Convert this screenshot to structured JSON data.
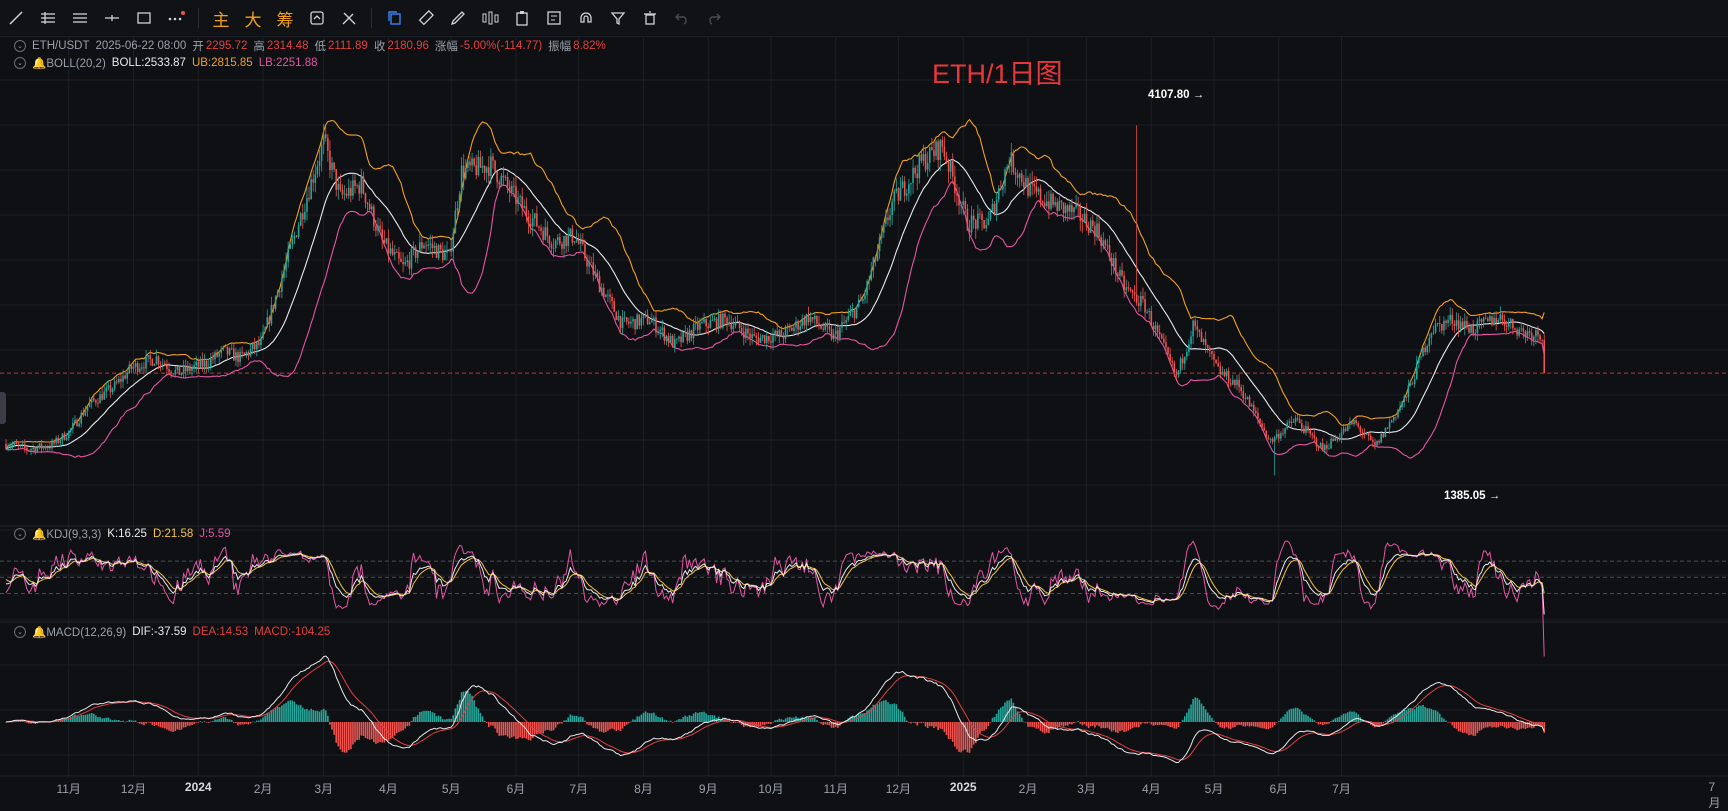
{
  "toolbar": {
    "tools": [
      "trend-line-icon",
      "horizontal-ray-icon",
      "parallel-channel-icon",
      "horizontal-line-icon",
      "rectangle-icon",
      "more-dots-icon"
    ],
    "text_buttons": [
      "主",
      "大",
      "筹"
    ],
    "right_tools": [
      "copy-icon",
      "ruler-icon",
      "brush-icon",
      "indicator-icon",
      "clipboard-icon",
      "note-icon",
      "magnet-icon",
      "filter-icon",
      "trash-icon",
      "undo-icon",
      "redo-icon"
    ]
  },
  "legend": {
    "symbol": "ETH/USDT",
    "datetime": "2025-06-22 08:00",
    "open_label": "开",
    "open": "2295.72",
    "high_label": "高",
    "high": "2314.48",
    "low_label": "低",
    "low": "2111.89",
    "close_label": "收",
    "close": "2180.96",
    "change_label": "涨幅",
    "change": "-5.00%(-114.77)",
    "amp_label": "振幅",
    "amp": "8.82%",
    "boll_name": "BOLL(20,2)",
    "boll": "BOLL:2533.87",
    "ub": "UB:2815.85",
    "lb": "LB:2251.88",
    "kdj_name": "KDJ(9,3,3)",
    "k": "K:16.25",
    "d": "D:21.58",
    "j": "J:5.59",
    "macd_name": "MACD(12,26,9)",
    "dif": "DIF:-37.59",
    "dea": "DEA:14.53",
    "macd": "MACD:-104.25"
  },
  "title": "ETH/1日图",
  "chart_data": {
    "type": "candlestick",
    "interval": "1d",
    "current_price": 2180.96,
    "markers": {
      "high": "4107.80",
      "low": "1385.05"
    },
    "x_labels": [
      "11月",
      "12月",
      "2024",
      "2月",
      "3月",
      "4月",
      "5月",
      "6月",
      "7月",
      "8月",
      "9月",
      "10月",
      "11月",
      "12月",
      "2025",
      "2月",
      "3月",
      "4月",
      "5月",
      "6月",
      "7月"
    ],
    "anchors": [
      [
        1,
        1630
      ],
      [
        10,
        1590
      ],
      [
        22,
        1620
      ],
      [
        30,
        1720
      ],
      [
        40,
        1940
      ],
      [
        52,
        2080
      ],
      [
        60,
        2220
      ],
      [
        72,
        2300
      ],
      [
        82,
        2180
      ],
      [
        96,
        2260
      ],
      [
        104,
        2350
      ],
      [
        112,
        2300
      ],
      [
        122,
        2410
      ],
      [
        130,
        2820
      ],
      [
        140,
        3350
      ],
      [
        152,
        3980
      ],
      [
        160,
        3550
      ],
      [
        170,
        3650
      ],
      [
        180,
        3200
      ],
      [
        190,
        3000
      ],
      [
        200,
        3200
      ],
      [
        212,
        3080
      ],
      [
        218,
        3750
      ],
      [
        232,
        3800
      ],
      [
        248,
        3450
      ],
      [
        262,
        3200
      ],
      [
        272,
        3250
      ],
      [
        283,
        2900
      ],
      [
        295,
        2560
      ],
      [
        308,
        2600
      ],
      [
        320,
        2400
      ],
      [
        332,
        2550
      ],
      [
        345,
        2600
      ],
      [
        358,
        2450
      ],
      [
        372,
        2480
      ],
      [
        384,
        2620
      ],
      [
        396,
        2460
      ],
      [
        410,
        2750
      ],
      [
        424,
        3500
      ],
      [
        438,
        3820
      ],
      [
        448,
        3950
      ],
      [
        460,
        3350
      ],
      [
        470,
        3350
      ],
      [
        480,
        3850
      ],
      [
        490,
        3600
      ],
      [
        500,
        3500
      ],
      [
        512,
        3420
      ],
      [
        522,
        3300
      ],
      [
        535,
        2850
      ],
      [
        545,
        2700
      ],
      [
        560,
        2150
      ],
      [
        568,
        2550
      ],
      [
        580,
        2200
      ],
      [
        590,
        2080
      ],
      [
        605,
        1650
      ],
      [
        617,
        1820
      ],
      [
        630,
        1590
      ],
      [
        645,
        1800
      ],
      [
        655,
        1605
      ],
      [
        670,
        2000
      ],
      [
        682,
        2520
      ],
      [
        692,
        2600
      ],
      [
        702,
        2520
      ],
      [
        714,
        2620
      ],
      [
        726,
        2500
      ],
      [
        737,
        2480
      ]
    ],
    "boll_period": 20,
    "boll_mult": 2,
    "kdj_params": [
      9,
      3,
      3
    ],
    "macd_params": [
      12,
      26,
      9
    ]
  },
  "colors": {
    "up": "#26a69a",
    "down": "#ef5350",
    "boll_mid": "#e8e9ec",
    "boll_ub": "#f0a020",
    "boll_lb": "#e356a3",
    "k": "#e8e9ec",
    "d": "#f5c242",
    "j": "#e356a3",
    "dif": "#e8e9ec",
    "dea": "#e0403f",
    "grid": "#1c1e24"
  }
}
